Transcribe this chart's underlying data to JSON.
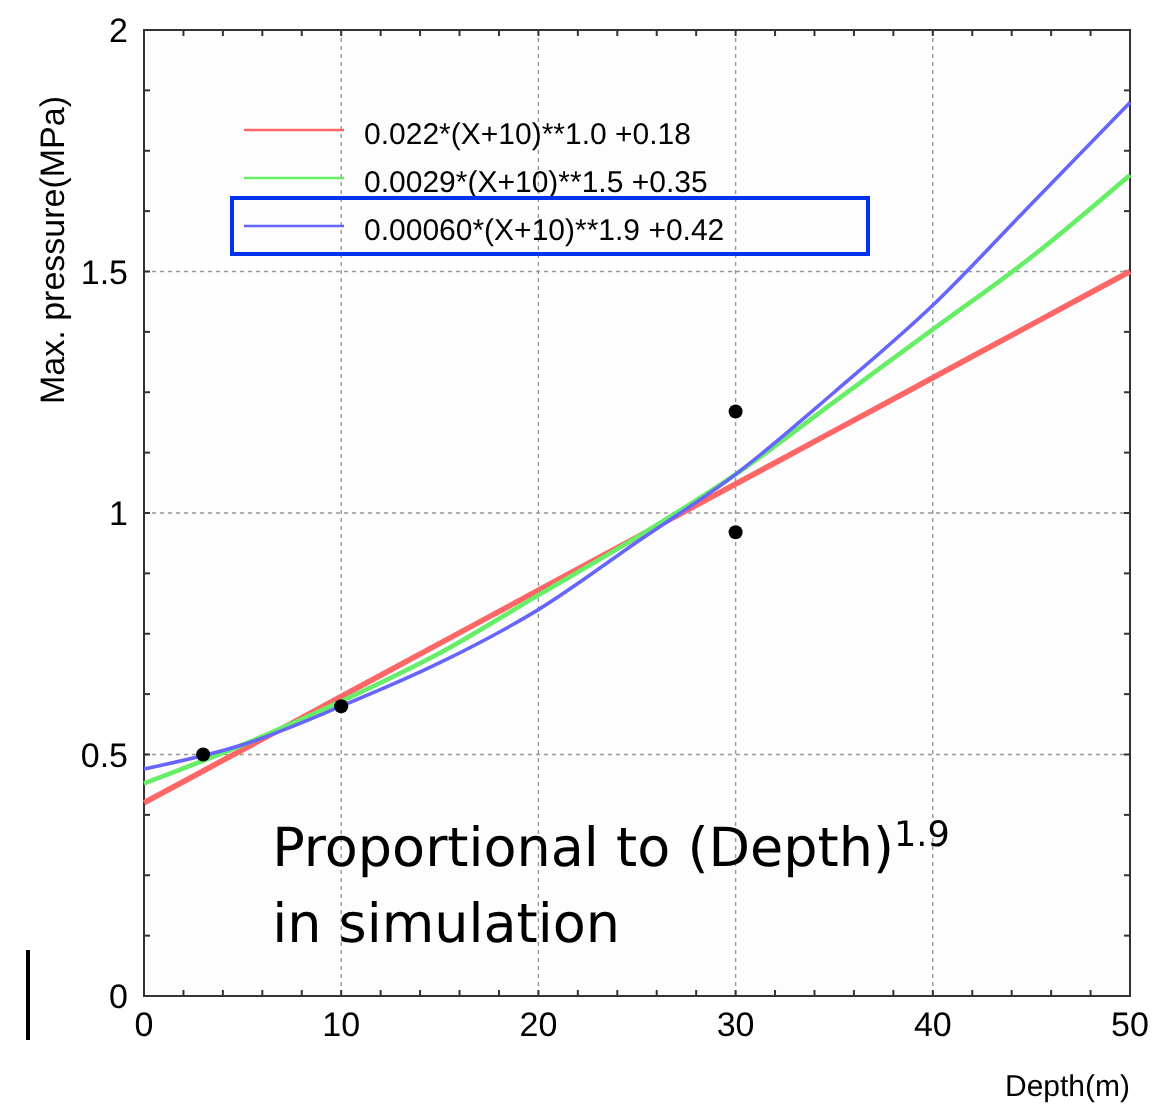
{
  "chart_data": {
    "type": "line",
    "xlabel": "Depth(m)",
    "ylabel": "Max. pressure(MPa)",
    "x": [
      0,
      5,
      10,
      15,
      20,
      25,
      30,
      35,
      40,
      45,
      50
    ],
    "xlim": [
      0,
      50
    ],
    "xticks": [
      0,
      10,
      20,
      30,
      40,
      50
    ],
    "ylim": [
      0,
      2
    ],
    "yticks": [
      0,
      0.5,
      1,
      1.5,
      2
    ],
    "grid": true,
    "legend": "top left",
    "marker": "none",
    "line_style": "solid",
    "series": [
      {
        "name": "0.022*(X+10)**1.0 +0.18",
        "color": "#ff6666",
        "values": [
          0.4,
          0.51,
          0.62,
          0.73,
          0.84,
          0.95,
          1.06,
          1.17,
          1.28,
          1.39,
          1.5
        ]
      },
      {
        "name": "0.0029*(X+10)**1.5 +0.35",
        "color": "#66ee66",
        "values": [
          0.44,
          0.52,
          0.61,
          0.71,
          0.83,
          0.95,
          1.08,
          1.23,
          1.38,
          1.53,
          1.7
        ]
      },
      {
        "name": "0.00060*(X+10)**1.9 +0.42",
        "color": "#6666ff",
        "values": [
          0.47,
          0.52,
          0.6,
          0.69,
          0.8,
          0.94,
          1.08,
          1.25,
          1.43,
          1.64,
          1.85
        ]
      },
      {
        "type": "scatter",
        "color": "#000000",
        "marker": "circle",
        "x": [
          3,
          10,
          30,
          30
        ],
        "values": [
          0.5,
          0.6,
          1.21,
          0.96
        ]
      }
    ],
    "annotations": [
      "Proportional to (Depth)$^{1.9}$",
      "in simulation"
    ]
  }
}
